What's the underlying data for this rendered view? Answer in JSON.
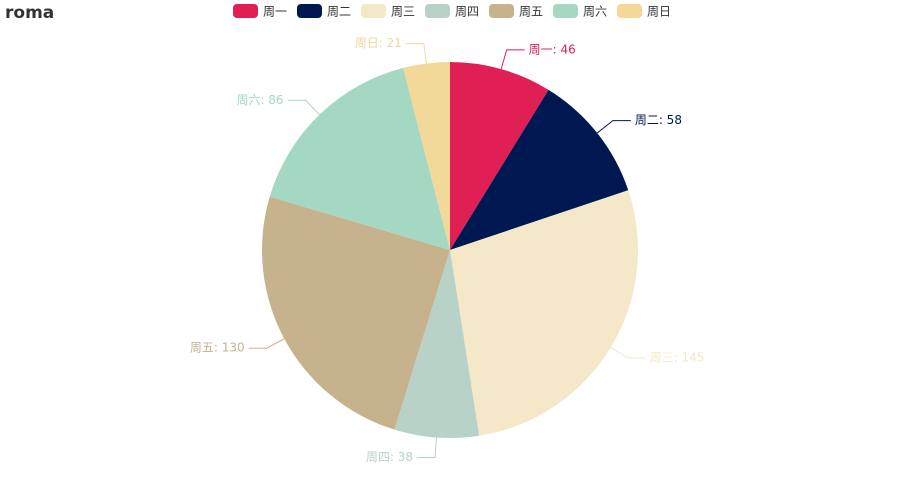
{
  "chart_data": {
    "type": "pie",
    "title": "roma",
    "categories": [
      "周一",
      "周二",
      "周三",
      "周四",
      "周五",
      "周六",
      "周日"
    ],
    "values": [
      46,
      58,
      145,
      38,
      130,
      86,
      21
    ],
    "value_labels": [
      "周一: 46",
      "周二: 58",
      "周三: 145",
      "周四: 38",
      "周五: 130",
      "周六: 86",
      "周日: 21"
    ],
    "colors": [
      "#e01f54",
      "#001852",
      "#f5e8c8",
      "#b8d2c7",
      "#c6b38e",
      "#a4d8c2",
      "#f3d999"
    ],
    "legend": "top"
  }
}
